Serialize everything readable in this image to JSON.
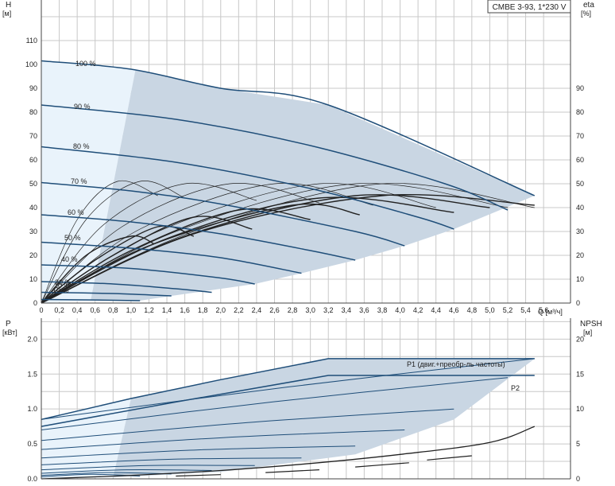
{
  "colors": {
    "grid": "#c8c8c8",
    "curve": "#1f4e79",
    "region_dark": "#c9d6e3",
    "region_light": "#e9f3fb",
    "efficiency": "#222222",
    "axis": "#444444"
  },
  "chart_data": [
    {
      "type": "line",
      "title": "CMBE 3-93, 1*230 V",
      "xlabel": "Q [м³/ч]",
      "ylabel": "H\n[м]",
      "ylabel_left_top": "H",
      "ylabel_left_unit": "[м]",
      "ylabel_right_top": "eta",
      "ylabel_right_unit": "[%]",
      "xlim": [
        0,
        5.9
      ],
      "ylim": [
        0,
        127
      ],
      "x_ticks": [
        "0",
        "0,2",
        "0,4",
        "0,6",
        "0,8",
        "1,0",
        "1,2",
        "1,4",
        "1,6",
        "1,8",
        "2,0",
        "2,2",
        "2,4",
        "2,6",
        "2,8",
        "3,0",
        "3,2",
        "3,4",
        "3,6",
        "3,8",
        "4,0",
        "4,2",
        "4,4",
        "4,6",
        "4,8",
        "5,0",
        "5,2",
        "5,4",
        "5,6"
      ],
      "y_ticks_left": [
        "0",
        "10",
        "20",
        "30",
        "40",
        "50",
        "60",
        "70",
        "80",
        "90",
        "100",
        "110"
      ],
      "y_ticks_right": [
        "0",
        "10",
        "20",
        "30",
        "40",
        "50",
        "60",
        "70",
        "80",
        "90"
      ],
      "grid": true,
      "speed_labels": [
        "100 %",
        "90 %",
        "80 %",
        "70 %",
        "60 %",
        "50 %",
        "40 %",
        "30 %",
        "20 %",
        "10 %"
      ],
      "series": [
        {
          "name": "100 %",
          "x": [
            0,
            1.0,
            2.0,
            3.2,
            5.5
          ],
          "y": [
            101.5,
            98,
            90,
            83,
            45
          ]
        },
        {
          "name": "90 %",
          "x": [
            0,
            1.5,
            3.0,
            4.5,
            5.2
          ],
          "y": [
            83,
            77,
            66,
            50,
            39
          ]
        },
        {
          "name": "80 %",
          "x": [
            0,
            1.5,
            3.0,
            4.2,
            4.6
          ],
          "y": [
            65.5,
            59,
            48,
            36,
            31
          ]
        },
        {
          "name": "70 %",
          "x": [
            0,
            1.0,
            2.0,
            3.5,
            4.05
          ],
          "y": [
            50.5,
            47,
            41.5,
            30,
            24
          ]
        },
        {
          "name": "60 %",
          "x": [
            0,
            1.0,
            2.0,
            3.0,
            3.5
          ],
          "y": [
            37,
            34,
            29,
            22,
            18
          ]
        },
        {
          "name": "50 %",
          "x": [
            0,
            1.0,
            2.0,
            2.9
          ],
          "y": [
            25.5,
            23,
            19,
            12.5
          ]
        },
        {
          "name": "40 %",
          "x": [
            0,
            1.0,
            2.0,
            2.38
          ],
          "y": [
            16,
            14.5,
            10.5,
            8
          ]
        },
        {
          "name": "30 %",
          "x": [
            0,
            0.8,
            1.5,
            1.9
          ],
          "y": [
            9,
            8,
            6,
            4.5
          ]
        },
        {
          "name": "20 %",
          "x": [
            0,
            0.8,
            1.45
          ],
          "y": [
            4.5,
            4,
            3
          ]
        },
        {
          "name": "10 %",
          "x": [
            0,
            0.6,
            1.1
          ],
          "y": [
            1.5,
            1.3,
            1
          ]
        }
      ]
    },
    {
      "type": "line",
      "xlabel": "",
      "ylabel_left_top": "P",
      "ylabel_left_unit": "[кВт]",
      "ylabel_right_top": "NPSH",
      "ylabel_right_unit": "[м]",
      "xlim": [
        0,
        5.9
      ],
      "ylim": [
        0,
        2.3
      ],
      "y_ticks_left": [
        "0.0",
        "0.5",
        "1.0",
        "1.5",
        "2.0"
      ],
      "y_ticks_right": [
        "0",
        "5",
        "10",
        "15",
        "20"
      ],
      "grid": true,
      "series_labels": [
        "P1 (двиг.+преобр-ль частоты)",
        "P2"
      ],
      "series": [
        {
          "name": "P1 (двиг.+преобр-ль частоты)",
          "x": [
            0,
            1.0,
            2.0,
            3.2,
            5.5
          ],
          "y": [
            0.85,
            1.15,
            1.42,
            1.72,
            1.72
          ]
        },
        {
          "name": "P2",
          "x": [
            0,
            1.5,
            3.2,
            5.5
          ],
          "y": [
            0.75,
            1.1,
            1.48,
            1.48
          ]
        }
      ],
      "npsh": {
        "x": [
          0,
          1.0,
          2.0,
          3.0,
          4.0,
          5.0,
          5.5
        ],
        "y": [
          0,
          0.5,
          1.2,
          2.2,
          3.5,
          5.2,
          7.5
        ]
      }
    }
  ]
}
